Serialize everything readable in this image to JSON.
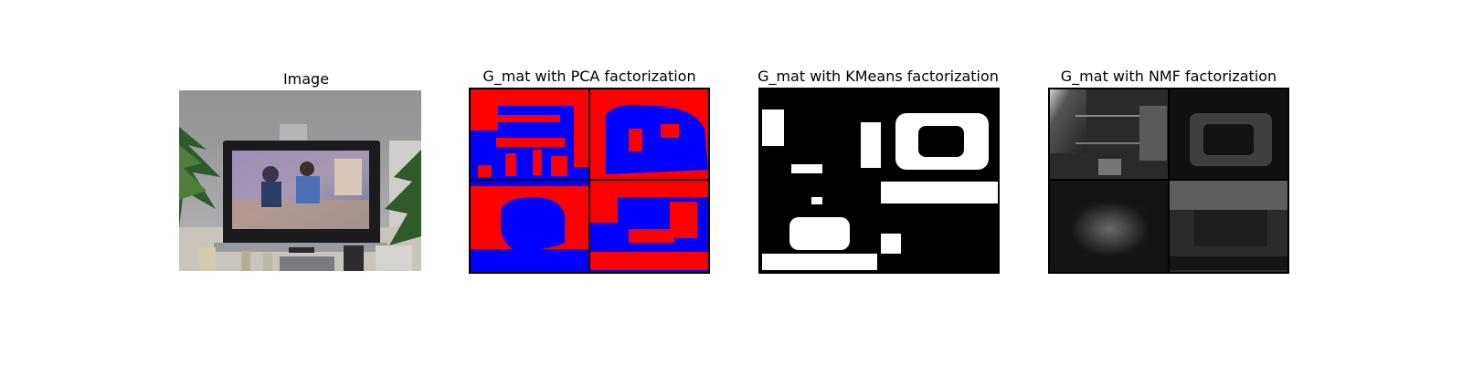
{
  "figure": {
    "panels": [
      {
        "title": "Image"
      },
      {
        "title": "G_mat with PCA factorization"
      },
      {
        "title": "G_mat with KMeans factorization"
      },
      {
        "title": "G_mat with NMF factorization"
      }
    ]
  },
  "colors": {
    "pca_positive": "#ff0000",
    "pca_negative": "#0000ff",
    "kmeans_on": "#ffffff",
    "kmeans_off": "#000000",
    "nmf_low": "#000000",
    "nmf_high": "#ffffff"
  }
}
